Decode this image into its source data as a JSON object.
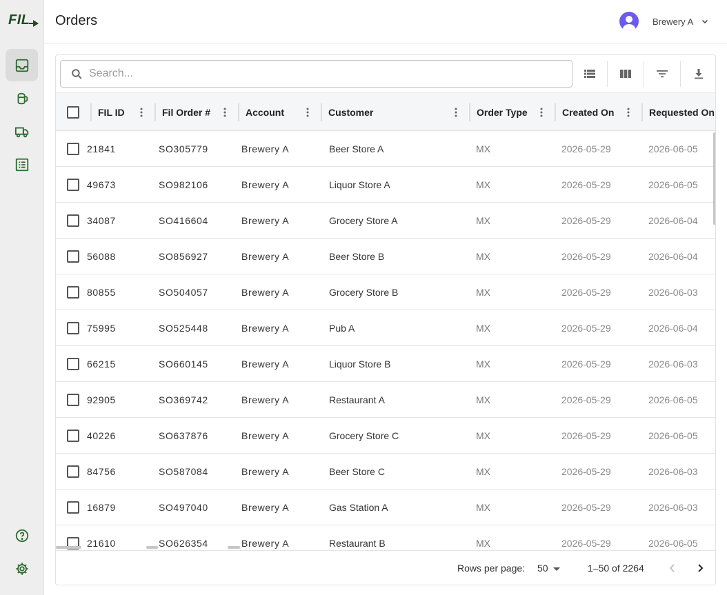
{
  "app": {
    "logo_text": "FIL"
  },
  "header": {
    "title": "Orders",
    "account": "Brewery A"
  },
  "sidebar": {
    "items": [
      {
        "name": "inbox-icon",
        "active": true
      },
      {
        "name": "keg-icon",
        "active": false
      },
      {
        "name": "truck-icon",
        "active": false
      },
      {
        "name": "list-icon",
        "active": false
      }
    ],
    "bottom": [
      {
        "name": "help-icon"
      },
      {
        "name": "settings-icon"
      }
    ]
  },
  "search": {
    "placeholder": "Search...",
    "value": ""
  },
  "toolbar": [
    "density-icon",
    "columns-icon",
    "filter-icon",
    "download-icon"
  ],
  "columns": [
    {
      "key": "fil_id",
      "label": "FIL ID"
    },
    {
      "key": "order_no",
      "label": "Fil Order #"
    },
    {
      "key": "account",
      "label": "Account"
    },
    {
      "key": "customer",
      "label": "Customer"
    },
    {
      "key": "order_type",
      "label": "Order Type"
    },
    {
      "key": "created_on",
      "label": "Created On"
    },
    {
      "key": "requested_on",
      "label": "Requested On"
    }
  ],
  "rows": [
    [
      "21841",
      "SO305779",
      "Brewery A",
      "Beer Store A",
      "MX",
      "2026-05-29",
      "2026-06-05"
    ],
    [
      "49673",
      "SO982106",
      "Brewery A",
      "Liquor Store A",
      "MX",
      "2026-05-29",
      "2026-06-05"
    ],
    [
      "34087",
      "SO416604",
      "Brewery A",
      "Grocery Store A",
      "MX",
      "2026-05-29",
      "2026-06-04"
    ],
    [
      "56088",
      "SO856927",
      "Brewery A",
      "Beer Store B",
      "MX",
      "2026-05-29",
      "2026-06-04"
    ],
    [
      "80855",
      "SO504057",
      "Brewery A",
      "Grocery Store B",
      "MX",
      "2026-05-29",
      "2026-06-03"
    ],
    [
      "75995",
      "SO525448",
      "Brewery A",
      "Pub A",
      "MX",
      "2026-05-29",
      "2026-06-04"
    ],
    [
      "66215",
      "SO660145",
      "Brewery A",
      "Liquor Store B",
      "MX",
      "2026-05-29",
      "2026-06-03"
    ],
    [
      "92905",
      "SO369742",
      "Brewery A",
      "Restaurant A",
      "MX",
      "2026-05-29",
      "2026-06-05"
    ],
    [
      "40226",
      "SO637876",
      "Brewery A",
      "Grocery Store C",
      "MX",
      "2026-05-29",
      "2026-06-05"
    ],
    [
      "84756",
      "SO587084",
      "Brewery A",
      "Beer Store C",
      "MX",
      "2026-05-29",
      "2026-06-03"
    ],
    [
      "16879",
      "SO497040",
      "Brewery A",
      "Gas Station A",
      "MX",
      "2026-05-29",
      "2026-06-03"
    ],
    [
      "21610",
      "SO626354",
      "Brewery A",
      "Restaurant B",
      "MX",
      "2026-05-29",
      "2026-06-05"
    ]
  ],
  "pagination": {
    "rows_per_page_label": "Rows per page:",
    "rows_per_page": "50",
    "range": "1–50 of 2264"
  }
}
